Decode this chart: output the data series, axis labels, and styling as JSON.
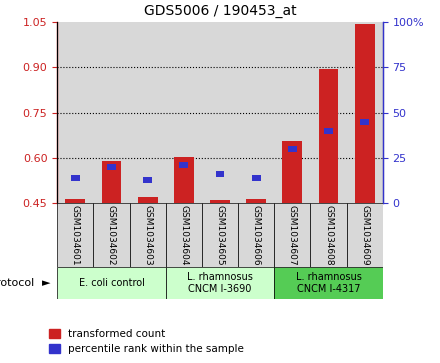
{
  "title": "GDS5006 / 190453_at",
  "samples": [
    "GSM1034601",
    "GSM1034602",
    "GSM1034603",
    "GSM1034604",
    "GSM1034605",
    "GSM1034606",
    "GSM1034607",
    "GSM1034608",
    "GSM1034609"
  ],
  "transformed_count": [
    0.463,
    0.59,
    0.472,
    0.603,
    0.462,
    0.464,
    0.655,
    0.895,
    1.043
  ],
  "percentile_rank": [
    14,
    20,
    13,
    21,
    16,
    14,
    30,
    40,
    45
  ],
  "ylim_left": [
    0.45,
    1.05
  ],
  "ylim_right": [
    0,
    100
  ],
  "yticks_left": [
    0.45,
    0.6,
    0.75,
    0.9,
    1.05
  ],
  "yticks_right": [
    0,
    25,
    50,
    75,
    100
  ],
  "bar_width": 0.55,
  "red_color": "#cc2222",
  "blue_color": "#3333cc",
  "group_labels": [
    "E. coli control",
    "L. rhamnosus\nCNCM I-3690",
    "L. rhamnosus\nCNCM I-4317"
  ],
  "group_ranges": [
    [
      0,
      3
    ],
    [
      3,
      6
    ],
    [
      6,
      9
    ]
  ],
  "group_colors": [
    "#ccffcc",
    "#ccffcc",
    "#55cc55"
  ],
  "protocol_label": "protocol",
  "legend_red": "transformed count",
  "legend_blue": "percentile rank within the sample",
  "bg_color": "#d8d8d8",
  "sample_label_fontsize": 6.5,
  "title_fontsize": 10
}
